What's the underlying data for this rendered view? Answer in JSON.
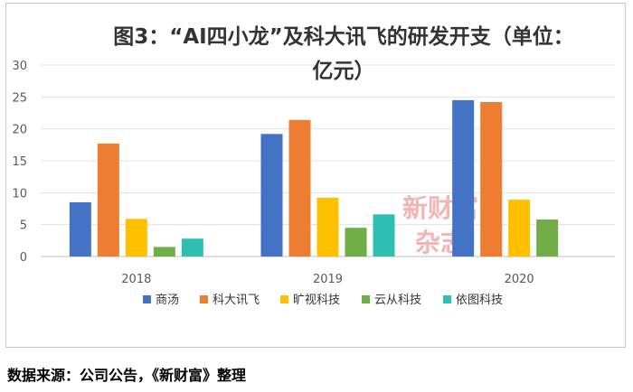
{
  "title": "图3：“AI四小龙”及科大讯飞的研发开支（单位：亿元）",
  "source": "数据来源：公司公告，《新财富》整理",
  "watermark": [
    "新财富",
    "杂志"
  ],
  "chart_data": {
    "type": "bar",
    "title": "图3：“AI四小龙”及科大讯飞的研发开支（单位：亿元）",
    "categories": [
      "2018",
      "2019",
      "2020"
    ],
    "series": [
      {
        "name": "商汤",
        "values": [
          8.5,
          19.2,
          24.5
        ],
        "color": "#4472c4"
      },
      {
        "name": "科大讯飞",
        "values": [
          17.7,
          21.4,
          24.2
        ],
        "color": "#ed7d31"
      },
      {
        "name": "旷视科技",
        "values": [
          5.9,
          9.2,
          8.9
        ],
        "color": "#ffc000"
      },
      {
        "name": "云从科技",
        "values": [
          1.5,
          4.5,
          5.8
        ],
        "color": "#70ad47"
      },
      {
        "name": "依图科技",
        "values": [
          2.8,
          6.6,
          null
        ],
        "color": "#2ebfb0"
      }
    ],
    "yticks": [
      0,
      5,
      10,
      15,
      20,
      25,
      30
    ],
    "ylim": [
      0,
      30
    ],
    "grid": true,
    "legend_position": "bottom"
  }
}
